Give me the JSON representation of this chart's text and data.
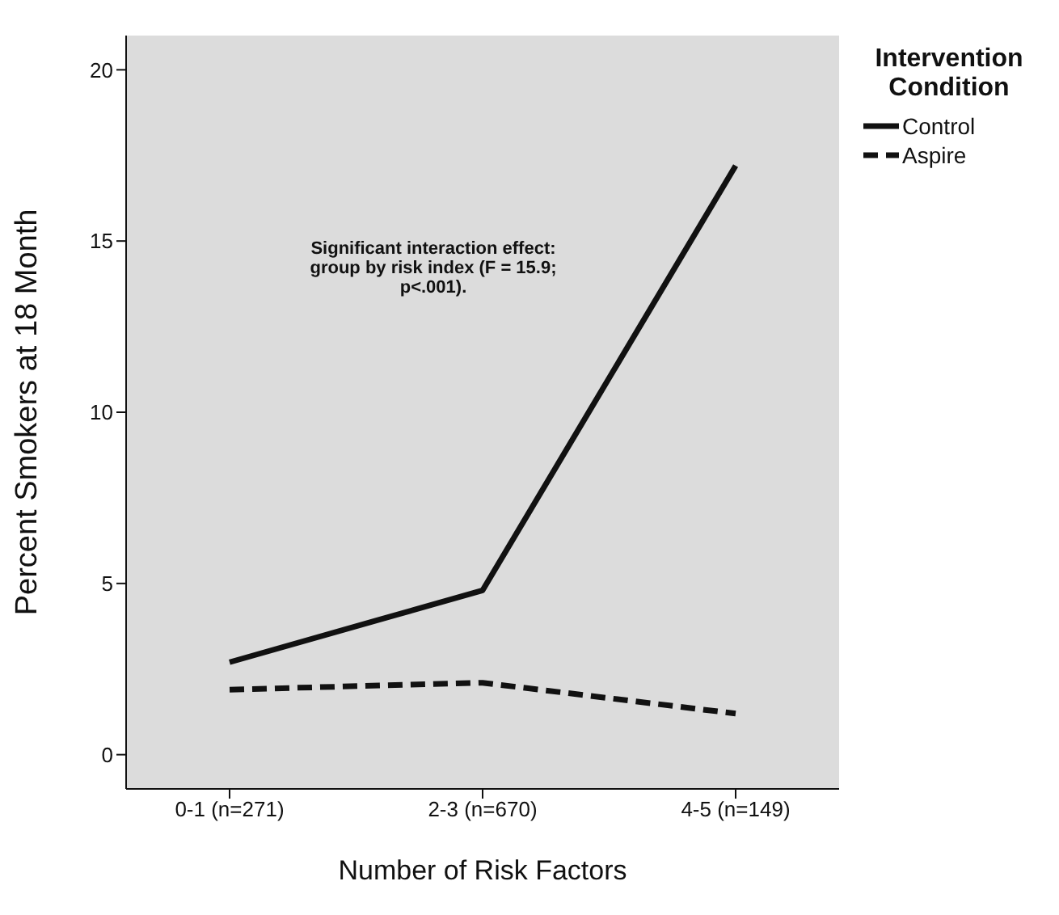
{
  "chart_data": {
    "type": "line",
    "xlabel": "Number of Risk Factors",
    "ylabel": "Percent Smokers at 18 Month",
    "legend_title": "Intervention Condition",
    "categories": [
      "0-1 (n=271)",
      "2-3 (n=670)",
      "4-5 (n=149)"
    ],
    "series": [
      {
        "name": "Control",
        "color": "#111111",
        "line_style": "solid",
        "values": [
          2.7,
          4.8,
          17.2
        ]
      },
      {
        "name": "Aspire",
        "color": "#111111",
        "line_style": "dashed",
        "values": [
          1.9,
          2.1,
          1.2
        ]
      }
    ],
    "ylim": [
      -1,
      21
    ],
    "yticks": [
      0,
      5,
      10,
      15,
      20
    ],
    "legend": "top right",
    "marker": "none",
    "annotations": [
      "Significant interaction effect: group by risk index (F = 15.9; p<.001)."
    ]
  }
}
